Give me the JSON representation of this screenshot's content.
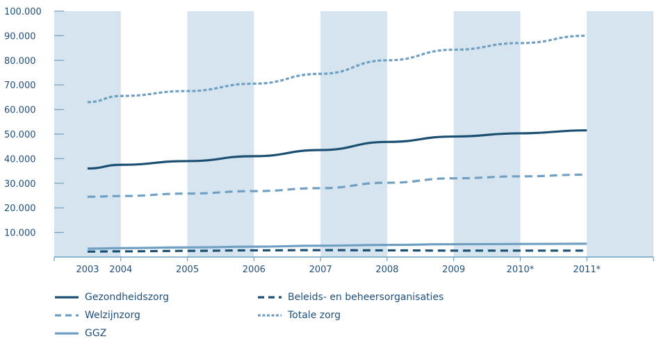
{
  "chart_data": {
    "type": "line",
    "title": "",
    "xlabel": "",
    "ylabel": "",
    "categories": [
      "2003",
      "2004",
      "2005",
      "2006",
      "2007",
      "2008",
      "2009",
      "2010*",
      "2011*"
    ],
    "ylim": [
      0,
      100000
    ],
    "yticks": [
      "10.000",
      "20.000",
      "30.000",
      "40.000",
      "50.000",
      "60.000",
      "70.000",
      "80.000",
      "90.000",
      "100.000"
    ],
    "ytick_values": [
      10000,
      20000,
      30000,
      40000,
      50000,
      60000,
      70000,
      80000,
      90000,
      100000
    ],
    "x_positions": [
      0,
      0.5,
      1.5,
      2.5,
      3.5,
      4.5,
      5.5,
      6.5,
      7.5
    ],
    "shaded_bands": true,
    "legend_position": "bottom",
    "series": [
      {
        "name": "Gezondheidszorg",
        "color": "#1a4f72",
        "style": "solid",
        "values": [
          36000,
          37500,
          39000,
          41000,
          43500,
          46800,
          49000,
          50300,
          51500
        ]
      },
      {
        "name": "Welzijnzorg",
        "color": "#6fa0c4",
        "style": "dashed",
        "values": [
          24500,
          24800,
          25800,
          26800,
          28000,
          30200,
          32000,
          32800,
          33500
        ]
      },
      {
        "name": "GGZ",
        "color": "#6fa0c4",
        "style": "solid",
        "values": [
          3400,
          3600,
          3900,
          4200,
          4600,
          4900,
          5200,
          5300,
          5400
        ]
      },
      {
        "name": "Beleids- en beheersorganisaties",
        "color": "#1a4f72",
        "style": "dashed",
        "values": [
          2200,
          2300,
          2500,
          2700,
          2800,
          2700,
          2600,
          2600,
          2600
        ]
      },
      {
        "name": "Totale zorg",
        "color": "#6fa0c4",
        "style": "dotted",
        "values": [
          63000,
          65500,
          67500,
          70500,
          74500,
          80000,
          84300,
          87000,
          90000
        ]
      }
    ]
  }
}
